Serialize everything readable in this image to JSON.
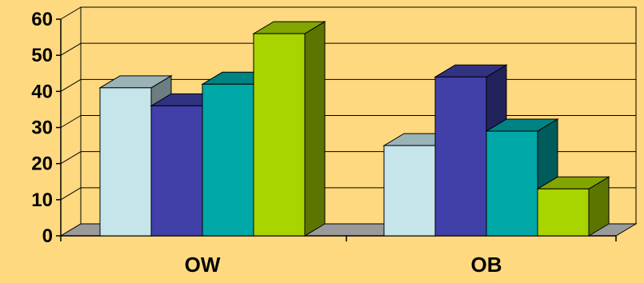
{
  "chart_data": {
    "type": "bar",
    "categories": [
      "OW",
      "OB"
    ],
    "series": [
      {
        "values": [
          41,
          25
        ],
        "color": "#C5E5EA"
      },
      {
        "values": [
          36,
          44
        ],
        "color": "#4040A8"
      },
      {
        "values": [
          42,
          29
        ],
        "color": "#00A8A8"
      },
      {
        "values": [
          56,
          13
        ],
        "color": "#A8D400"
      }
    ],
    "title": "",
    "xlabel": "",
    "ylabel": "",
    "ylim": [
      0,
      60
    ],
    "yticks": [
      "0",
      "10",
      "20",
      "30",
      "40",
      "50",
      "60"
    ],
    "grid": true,
    "legend": "none",
    "style": "3d-column",
    "colors": {
      "background": "#FFD980",
      "floor": "#9A9A9A",
      "grid": "#000000"
    }
  }
}
